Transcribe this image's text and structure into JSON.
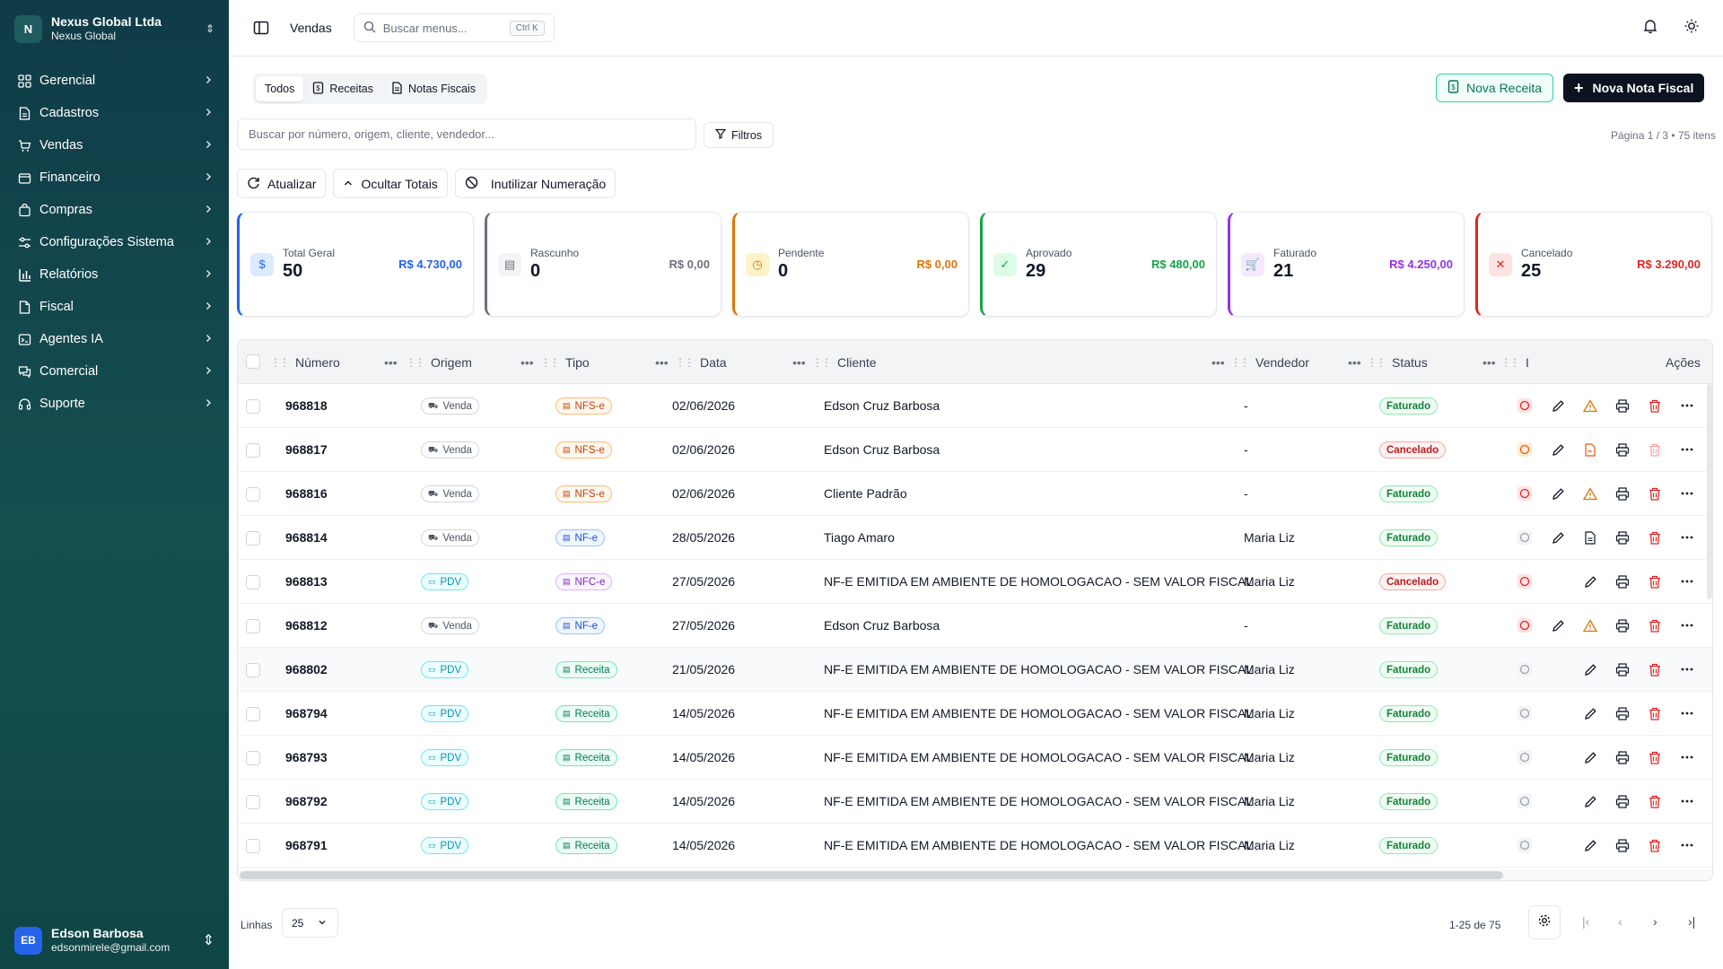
{
  "company": {
    "initial": "N",
    "name": "Nexus Global Ltda",
    "sub": "Nexus Global"
  },
  "nav": [
    {
      "label": "Gerencial",
      "icon": "grid-icon"
    },
    {
      "label": "Cadastros",
      "icon": "document-icon"
    },
    {
      "label": "Vendas",
      "icon": "cart-icon"
    },
    {
      "label": "Financeiro",
      "icon": "wallet-icon"
    },
    {
      "label": "Compras",
      "icon": "bag-icon"
    },
    {
      "label": "Configurações Sistema",
      "icon": "sliders-icon"
    },
    {
      "label": "Relatórios",
      "icon": "bar-chart-icon"
    },
    {
      "label": "Fiscal",
      "icon": "file-icon"
    },
    {
      "label": "Agentes IA",
      "icon": "bot-icon"
    },
    {
      "label": "Comercial",
      "icon": "chat-icon"
    },
    {
      "label": "Suporte",
      "icon": "headset-icon"
    }
  ],
  "user": {
    "initials": "EB",
    "name": "Edson Barbosa",
    "email": "edsonmirele@gmail.com"
  },
  "topbar": {
    "crumb": "Vendas",
    "search_placeholder": "Buscar menus...",
    "shortcut": "Ctrl K"
  },
  "tabs": [
    "Todos",
    "Receitas",
    "Notas Fiscais"
  ],
  "buttons": {
    "nova_receita": "Nova Receita",
    "nova_nota": "Nova Nota Fiscal",
    "filtros": "Filtros",
    "atualizar": "Atualizar",
    "ocultar": "Ocultar Totais",
    "inutilizar": "Inutilizar Numeração"
  },
  "search": {
    "placeholder": "Buscar por número, origem, cliente, vendedor..."
  },
  "pageinfo": "Página 1 / 3 • 75 itens",
  "cards": [
    {
      "title": "Total Geral",
      "count": "50",
      "value": "R$ 4.730,00",
      "color": "#2563eb",
      "bg": "#dbeafe",
      "icon": "dollar-icon",
      "glyph": "$"
    },
    {
      "title": "Rascunho",
      "count": "0",
      "value": "R$ 0,00",
      "color": "#6b7280",
      "bg": "#f3f4f6",
      "icon": "draft-icon",
      "glyph": "▤"
    },
    {
      "title": "Pendente",
      "count": "0",
      "value": "R$ 0,00",
      "color": "#d97706",
      "bg": "#fef3c7",
      "icon": "clock-icon",
      "glyph": "◷"
    },
    {
      "title": "Aprovado",
      "count": "29",
      "value": "R$ 480,00",
      "color": "#16a34a",
      "bg": "#dcfce7",
      "icon": "check-circle-icon",
      "glyph": "✓"
    },
    {
      "title": "Faturado",
      "count": "21",
      "value": "R$ 4.250,00",
      "color": "#9333ea",
      "bg": "#f3e8ff",
      "icon": "cart-icon",
      "glyph": "🛒"
    },
    {
      "title": "Cancelado",
      "count": "25",
      "value": "R$ 3.290,00",
      "color": "#dc2626",
      "bg": "#fee2e2",
      "icon": "x-circle-icon",
      "glyph": "✕"
    }
  ],
  "columns": [
    "Número",
    "Origem",
    "Tipo",
    "Data",
    "Cliente",
    "Vendedor",
    "Status",
    "I",
    "Ações"
  ],
  "rows": [
    {
      "num": "968818",
      "origem": "Venda",
      "tipo": "NFS-e",
      "data": "02/06/2026",
      "cliente": "Edson Cruz Barbosa",
      "vendedor": "-",
      "status": "Faturado",
      "extra": "warning",
      "delete_active": true
    },
    {
      "num": "968817",
      "origem": "Venda",
      "tipo": "NFS-e",
      "data": "02/06/2026",
      "cliente": "Edson Cruz Barbosa",
      "vendedor": "-",
      "status": "Cancelado",
      "extra": "file-orange",
      "delete_active": false
    },
    {
      "num": "968816",
      "origem": "Venda",
      "tipo": "NFS-e",
      "data": "02/06/2026",
      "cliente": "Cliente Padrão",
      "vendedor": "-",
      "status": "Faturado",
      "extra": "warning",
      "delete_active": true
    },
    {
      "num": "968814",
      "origem": "Venda",
      "tipo": "NF-e",
      "data": "28/05/2026",
      "cliente": "Tiago Amaro",
      "vendedor": "Maria Liz",
      "status": "Faturado",
      "extra": "doc",
      "delete_active": true
    },
    {
      "num": "968813",
      "origem": "PDV",
      "tipo": "NFC-e",
      "data": "27/05/2026",
      "cliente": "NF-E EMITIDA EM AMBIENTE DE HOMOLOGACAO - SEM VALOR FISCAL",
      "vendedor": "Maria Liz",
      "status": "Cancelado",
      "extra": "none",
      "delete_active": true
    },
    {
      "num": "968812",
      "origem": "Venda",
      "tipo": "NF-e",
      "data": "27/05/2026",
      "cliente": "Edson Cruz Barbosa",
      "vendedor": "-",
      "status": "Faturado",
      "extra": "warning",
      "delete_active": true
    },
    {
      "num": "968802",
      "origem": "PDV",
      "tipo": "Receita",
      "data": "21/05/2026",
      "cliente": "NF-E EMITIDA EM AMBIENTE DE HOMOLOGACAO - SEM VALOR FISCAL",
      "vendedor": "Maria Liz",
      "status": "Faturado",
      "extra": "none",
      "delete_active": true
    },
    {
      "num": "968794",
      "origem": "PDV",
      "tipo": "Receita",
      "data": "14/05/2026",
      "cliente": "NF-E EMITIDA EM AMBIENTE DE HOMOLOGACAO - SEM VALOR FISCAL",
      "vendedor": "Maria Liz",
      "status": "Faturado",
      "extra": "none",
      "delete_active": true
    },
    {
      "num": "968793",
      "origem": "PDV",
      "tipo": "Receita",
      "data": "14/05/2026",
      "cliente": "NF-E EMITIDA EM AMBIENTE DE HOMOLOGACAO - SEM VALOR FISCAL",
      "vendedor": "Maria Liz",
      "status": "Faturado",
      "extra": "none",
      "delete_active": true
    },
    {
      "num": "968792",
      "origem": "PDV",
      "tipo": "Receita",
      "data": "14/05/2026",
      "cliente": "NF-E EMITIDA EM AMBIENTE DE HOMOLOGACAO - SEM VALOR FISCAL",
      "vendedor": "Maria Liz",
      "status": "Faturado",
      "extra": "none",
      "delete_active": true
    },
    {
      "num": "968791",
      "origem": "PDV",
      "tipo": "Receita",
      "data": "14/05/2026",
      "cliente": "NF-E EMITIDA EM AMBIENTE DE HOMOLOGACAO - SEM VALOR FISCAL",
      "vendedor": "Maria Liz",
      "status": "Faturado",
      "extra": "none",
      "delete_active": true
    }
  ],
  "footer": {
    "lines_label": "Linhas",
    "lines_value": "25",
    "range": "1-25 de 75"
  }
}
